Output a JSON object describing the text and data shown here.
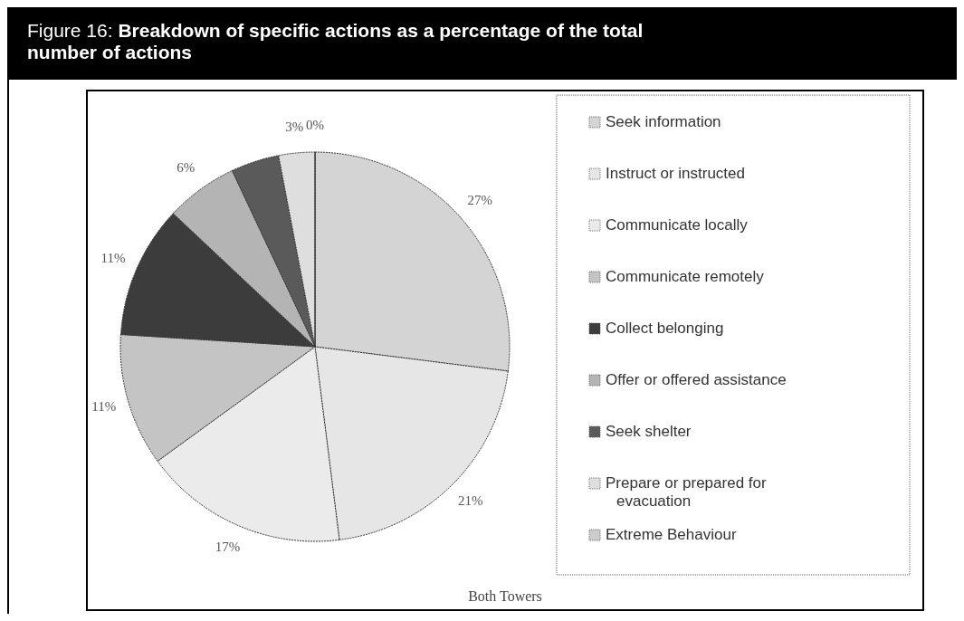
{
  "chart_data": {
    "type": "pie",
    "title": "Figure 16: Breakdown of specific actions as a percentage of the total number of actions",
    "xlabel": "Both Towers",
    "categories": [
      "Seek information",
      "Instruct or instructed",
      "Communicate locally",
      "Communicate remotely",
      "Collect belonging",
      "Offer or offered assistance",
      "Seek shelter",
      "Prepare or prepared for evacuation",
      "Extreme Behaviour"
    ],
    "values": [
      27,
      21,
      17,
      11,
      11,
      6,
      4,
      3,
      0
    ],
    "value_labels": [
      "27%",
      "21%",
      "17%",
      "11%",
      "11%",
      "6%",
      null,
      "3%",
      "0%"
    ],
    "colors": [
      "#d4d4d4",
      "#e6e6e6",
      "#ebebeb",
      "#c4c4c4",
      "#3c3c3c",
      "#b4b4b4",
      "#5a5a5a",
      "#dedede",
      "#cccccc"
    ],
    "legend": "right"
  }
}
